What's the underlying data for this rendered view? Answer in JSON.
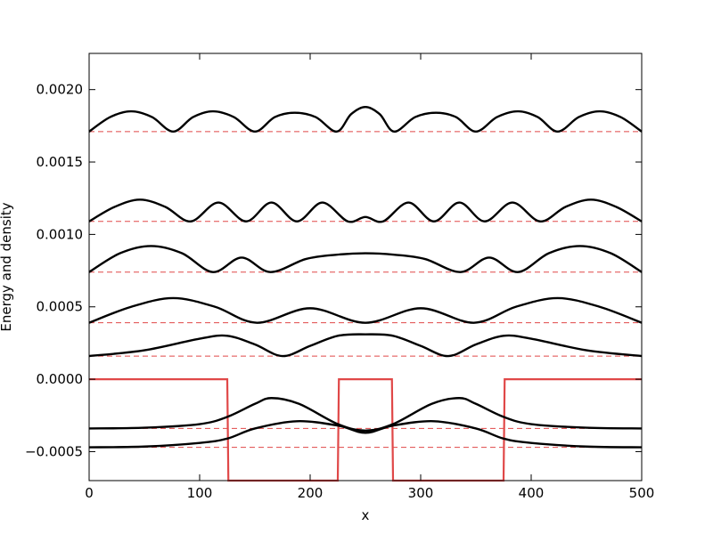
{
  "chart_data": {
    "type": "line",
    "title": "",
    "xlabel": "x",
    "ylabel": "Energy and density",
    "xlim": [
      0,
      500
    ],
    "ylim": [
      -0.0007,
      0.00225
    ],
    "xticks": [
      {
        "value": 0,
        "label": "0"
      },
      {
        "value": 100,
        "label": "100"
      },
      {
        "value": 200,
        "label": "200"
      },
      {
        "value": 300,
        "label": "300"
      },
      {
        "value": 400,
        "label": "400"
      },
      {
        "value": 500,
        "label": "500"
      }
    ],
    "yticks": [
      {
        "value": -0.0005,
        "label": "−0.0005"
      },
      {
        "value": 0,
        "label": "0.0000"
      },
      {
        "value": 0.0005,
        "label": "0.0005"
      },
      {
        "value": 0.001,
        "label": "0.0010"
      },
      {
        "value": 0.0015,
        "label": "0.0015"
      },
      {
        "value": 0.002,
        "label": "0.0020"
      }
    ],
    "grid": false,
    "colors": {
      "density": "#000000",
      "potential": "#e04848",
      "energy_level": "#e04848"
    },
    "potential": {
      "x": [
        0,
        125,
        126,
        225,
        226,
        274,
        275,
        375,
        376,
        500
      ],
      "y": [
        0,
        0,
        -0.0007,
        -0.0007,
        0,
        0,
        -0.0007,
        -0.0007,
        0,
        0
      ]
    },
    "energy_levels": [
      -0.00047,
      -0.00034,
      0.00016,
      0.00039,
      0.00074,
      0.00109,
      0.00171
    ],
    "density_curves": [
      {
        "energy": -0.00047,
        "x": [
          0,
          50,
          100,
          125,
          150,
          188,
          225,
          250,
          275,
          312,
          350,
          375,
          400,
          450,
          500
        ],
        "y": [
          -0.00047,
          -0.000465,
          -0.00044,
          -0.00041,
          -0.00034,
          -0.00029,
          -0.00032,
          -0.00037,
          -0.00032,
          -0.00029,
          -0.00034,
          -0.00041,
          -0.00044,
          -0.000465,
          -0.00047
        ]
      },
      {
        "energy": -0.00034,
        "x": [
          0,
          50,
          100,
          125,
          150,
          165,
          190,
          225,
          250,
          275,
          310,
          335,
          350,
          375,
          400,
          450,
          500
        ],
        "y": [
          -0.00034,
          -0.000335,
          -0.00031,
          -0.00026,
          -0.00017,
          -0.00013,
          -0.00017,
          -0.00031,
          -0.000355,
          -0.00031,
          -0.00017,
          -0.00013,
          -0.00017,
          -0.00026,
          -0.00031,
          -0.000335,
          -0.00034
        ]
      },
      {
        "energy": 0.00016,
        "x": [
          0,
          50,
          100,
          125,
          150,
          175,
          200,
          225,
          250,
          275,
          300,
          325,
          350,
          375,
          400,
          450,
          500
        ],
        "y": [
          0.00016,
          0.0002,
          0.00028,
          0.0003,
          0.00024,
          0.00016,
          0.00023,
          0.0003,
          0.00031,
          0.0003,
          0.00023,
          0.00016,
          0.00024,
          0.0003,
          0.00028,
          0.0002,
          0.00016
        ]
      },
      {
        "energy": 0.00039,
        "x": [
          0,
          38,
          76,
          114,
          152,
          200,
          250,
          300,
          348,
          386,
          424,
          462,
          500
        ],
        "y": [
          0.00039,
          0.0005,
          0.00056,
          0.0005,
          0.00039,
          0.00049,
          0.00039,
          0.00049,
          0.00039,
          0.0005,
          0.00056,
          0.0005,
          0.00039
        ]
      },
      {
        "energy": 0.00074,
        "x": [
          0,
          28,
          56,
          84,
          112,
          138,
          164,
          196,
          224,
          250,
          276,
          304,
          336,
          362,
          388,
          416,
          444,
          472,
          500
        ],
        "y": [
          0.00074,
          0.00087,
          0.00092,
          0.00087,
          0.00074,
          0.00084,
          0.00074,
          0.00083,
          0.00086,
          0.00087,
          0.00086,
          0.00083,
          0.00074,
          0.00084,
          0.00074,
          0.00087,
          0.00092,
          0.00087,
          0.00074
        ]
      },
      {
        "energy": 0.00109,
        "x": [
          0,
          23,
          46,
          69,
          92,
          117,
          142,
          165,
          188,
          211,
          234,
          250,
          266,
          289,
          312,
          335,
          358,
          383,
          408,
          431,
          454,
          477,
          500
        ],
        "y": [
          0.00109,
          0.00119,
          0.00124,
          0.00119,
          0.00109,
          0.00122,
          0.00109,
          0.00122,
          0.00109,
          0.00122,
          0.00109,
          0.00112,
          0.00109,
          0.00122,
          0.00109,
          0.00122,
          0.00109,
          0.00122,
          0.00109,
          0.00119,
          0.00124,
          0.00119,
          0.00109
        ]
      },
      {
        "energy": 0.00171,
        "x": [
          0,
          19,
          38,
          57,
          76,
          94,
          112,
          131,
          150,
          168,
          186,
          205,
          224,
          237,
          250,
          263,
          276,
          295,
          314,
          332,
          350,
          369,
          388,
          406,
          424,
          443,
          462,
          481,
          500
        ],
        "y": [
          0.00171,
          0.00181,
          0.00185,
          0.00181,
          0.00171,
          0.00181,
          0.00185,
          0.00181,
          0.00171,
          0.00181,
          0.00184,
          0.00181,
          0.00171,
          0.00183,
          0.00188,
          0.00183,
          0.00171,
          0.00181,
          0.00184,
          0.00181,
          0.00171,
          0.00181,
          0.00185,
          0.00181,
          0.00171,
          0.00181,
          0.00185,
          0.00181,
          0.00171
        ]
      }
    ]
  }
}
